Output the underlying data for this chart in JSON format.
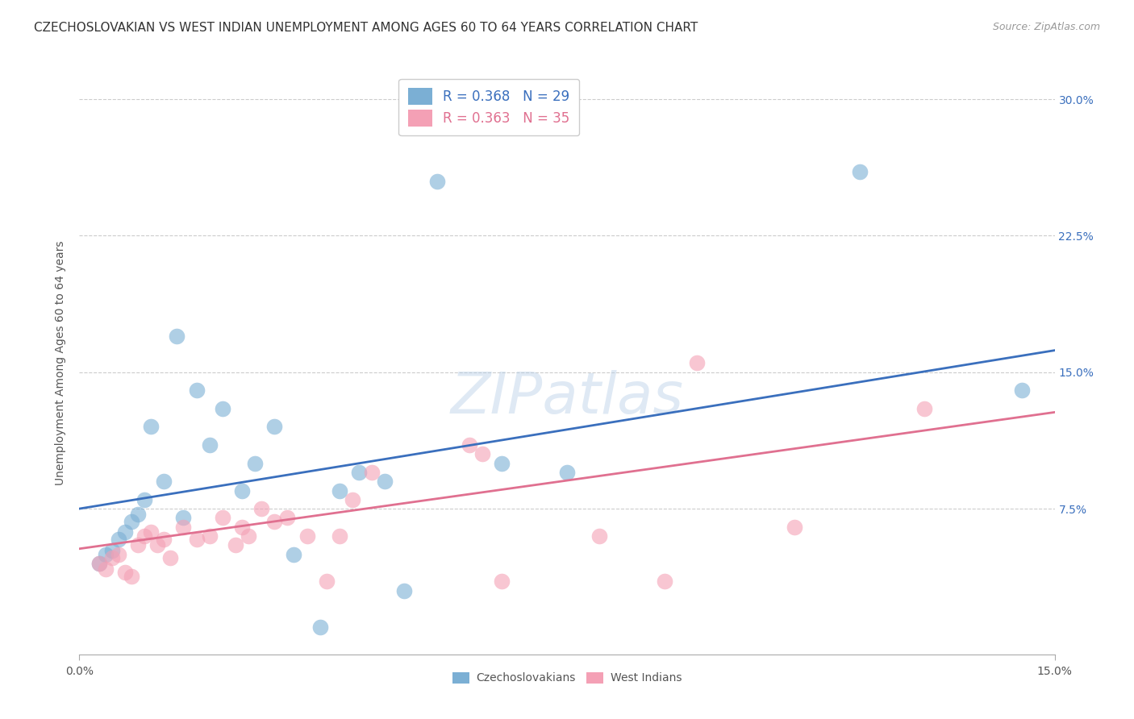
{
  "title": "CZECHOSLOVAKIAN VS WEST INDIAN UNEMPLOYMENT AMONG AGES 60 TO 64 YEARS CORRELATION CHART",
  "source": "Source: ZipAtlas.com",
  "ylabel": "Unemployment Among Ages 60 to 64 years",
  "xlim": [
    0.0,
    0.15
  ],
  "ylim": [
    -0.005,
    0.315
  ],
  "yticks": [
    0.075,
    0.15,
    0.225,
    0.3
  ],
  "xticks": [
    0.0,
    0.15
  ],
  "grid_color": "#cccccc",
  "background_color": "#ffffff",
  "czech_color": "#7bafd4",
  "west_color": "#f4a0b5",
  "czech_line_color": "#3a6fbd",
  "west_line_color": "#e07090",
  "czech_R": 0.368,
  "czech_N": 29,
  "west_R": 0.363,
  "west_N": 35,
  "czech_x": [
    0.003,
    0.004,
    0.005,
    0.006,
    0.007,
    0.008,
    0.009,
    0.01,
    0.011,
    0.013,
    0.015,
    0.016,
    0.018,
    0.02,
    0.022,
    0.025,
    0.027,
    0.03,
    0.033,
    0.037,
    0.04,
    0.043,
    0.047,
    0.05,
    0.055,
    0.065,
    0.075,
    0.12,
    0.145
  ],
  "czech_y": [
    0.045,
    0.05,
    0.052,
    0.058,
    0.062,
    0.068,
    0.072,
    0.08,
    0.12,
    0.09,
    0.17,
    0.07,
    0.14,
    0.11,
    0.13,
    0.085,
    0.1,
    0.12,
    0.05,
    0.01,
    0.085,
    0.095,
    0.09,
    0.03,
    0.255,
    0.1,
    0.095,
    0.26,
    0.14
  ],
  "west_x": [
    0.003,
    0.004,
    0.005,
    0.006,
    0.007,
    0.008,
    0.009,
    0.01,
    0.011,
    0.012,
    0.013,
    0.014,
    0.016,
    0.018,
    0.02,
    0.022,
    0.024,
    0.025,
    0.026,
    0.028,
    0.03,
    0.032,
    0.035,
    0.038,
    0.04,
    0.042,
    0.045,
    0.06,
    0.062,
    0.065,
    0.08,
    0.09,
    0.095,
    0.11,
    0.13
  ],
  "west_y": [
    0.045,
    0.042,
    0.048,
    0.05,
    0.04,
    0.038,
    0.055,
    0.06,
    0.062,
    0.055,
    0.058,
    0.048,
    0.065,
    0.058,
    0.06,
    0.07,
    0.055,
    0.065,
    0.06,
    0.075,
    0.068,
    0.07,
    0.06,
    0.035,
    0.06,
    0.08,
    0.095,
    0.11,
    0.105,
    0.035,
    0.06,
    0.035,
    0.155,
    0.065,
    0.13
  ],
  "czech_line_x0": 0.0,
  "czech_line_y0": 0.075,
  "czech_line_x1": 0.15,
  "czech_line_y1": 0.162,
  "west_line_x0": 0.0,
  "west_line_y0": 0.053,
  "west_line_x1": 0.15,
  "west_line_y1": 0.128,
  "watermark": "ZIPatlas",
  "title_fontsize": 11,
  "source_fontsize": 9,
  "axis_label_fontsize": 10,
  "tick_fontsize": 10,
  "legend_fontsize": 12,
  "watermark_fontsize": 52
}
